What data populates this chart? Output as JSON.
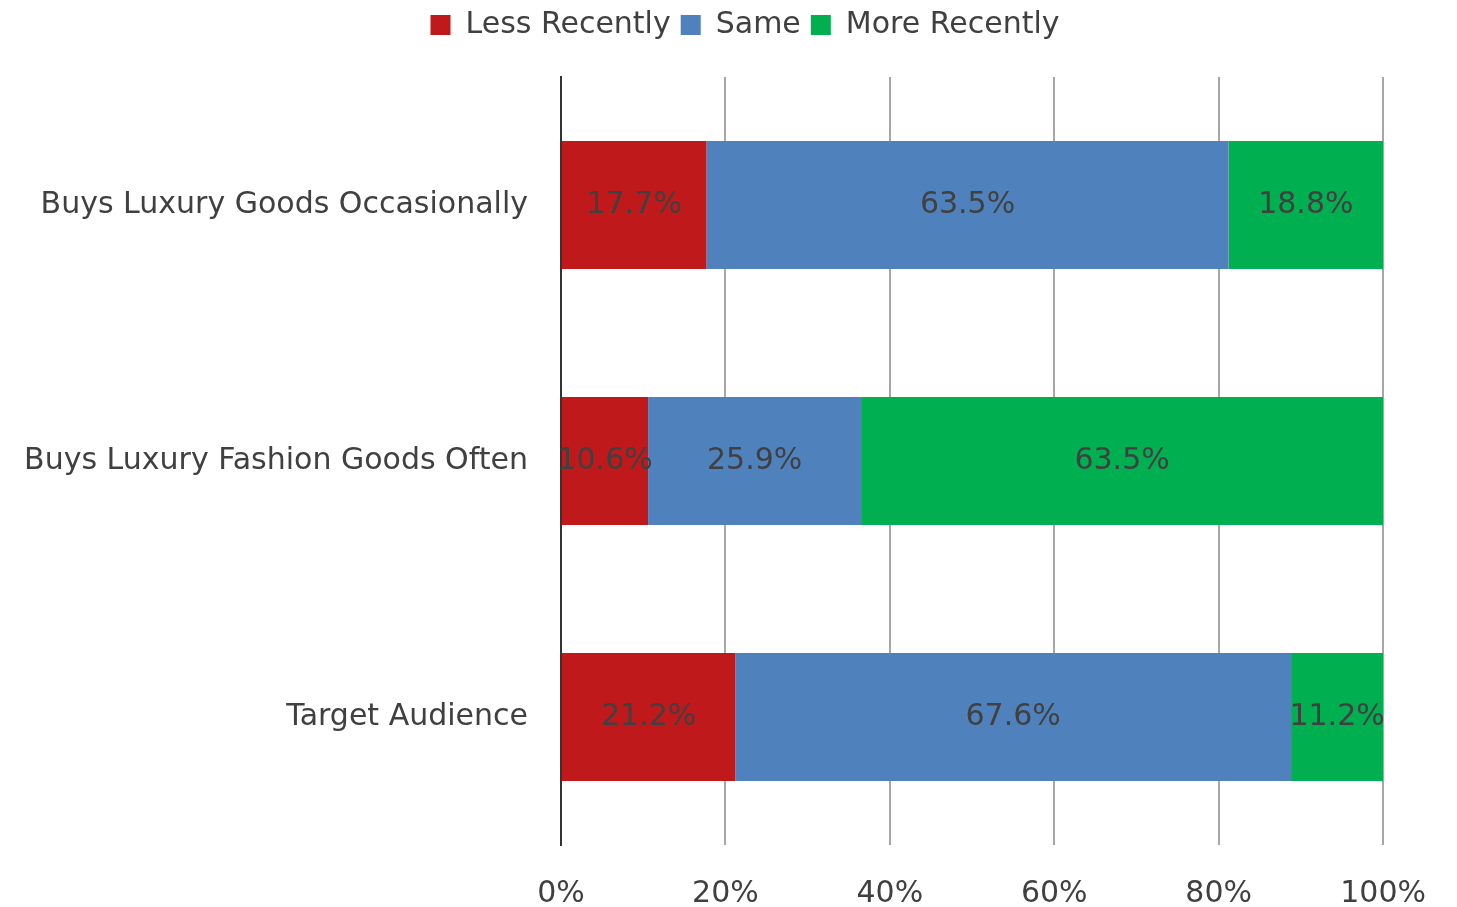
{
  "chart_data": {
    "type": "bar",
    "orientation": "horizontal",
    "stacked": true,
    "categories": [
      "Buys Luxury Goods Occasionally",
      "Buys Luxury Fashion Goods Often",
      "Target Audience"
    ],
    "series": [
      {
        "name": "Less Recently",
        "color": "#c0191b",
        "values": [
          17.7,
          10.6,
          21.2
        ],
        "value_labels": [
          "17.7%",
          "10.6%",
          "21.2%"
        ]
      },
      {
        "name": "Same",
        "color": "#4f81bd",
        "values": [
          63.5,
          25.9,
          67.6
        ],
        "value_labels": [
          "63.5%",
          "25.9%",
          "67.6%"
        ]
      },
      {
        "name": "More Recently",
        "color": "#00b050",
        "values": [
          18.8,
          63.5,
          11.2
        ],
        "value_labels": [
          "18.8%",
          "63.5%",
          "11.2%"
        ]
      }
    ],
    "xlim": [
      0,
      100
    ],
    "xticks": [
      {
        "value": 0,
        "label": "0%"
      },
      {
        "value": 20,
        "label": "20%"
      },
      {
        "value": 40,
        "label": "40%"
      },
      {
        "value": 60,
        "label": "60%"
      },
      {
        "value": 80,
        "label": "80%"
      },
      {
        "value": 100,
        "label": "100%"
      }
    ],
    "grid": "x",
    "legend": "top"
  }
}
